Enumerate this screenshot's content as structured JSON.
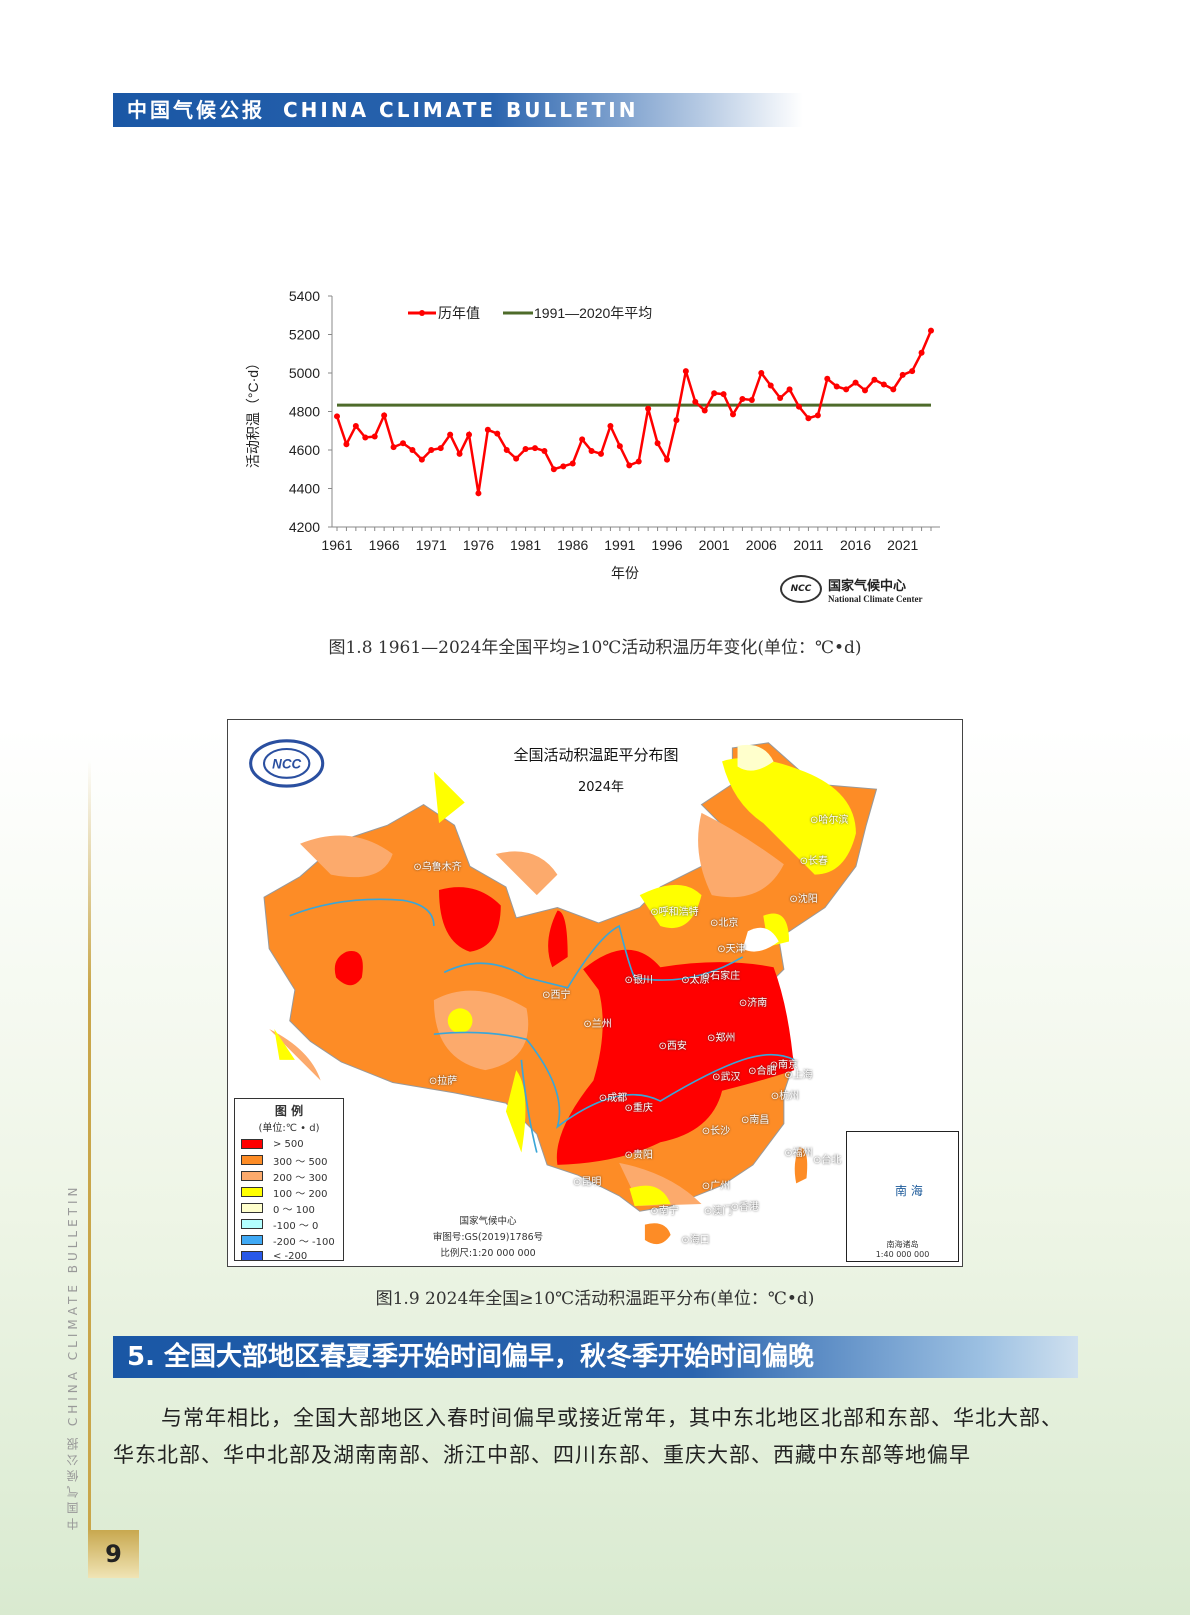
{
  "header": {
    "cn": "中国气候公报",
    "en": "CHINA CLIMATE BULLETIN"
  },
  "chart_data": {
    "type": "line",
    "title": "",
    "xlabel": "年份",
    "ylabel": "活动积温（°C·d）",
    "ylim": [
      4200,
      5400
    ],
    "yticks": [
      "4200",
      "4400",
      "4600",
      "4800",
      "5000",
      "5200",
      "5400"
    ],
    "xticks": [
      "1961",
      "1966",
      "1971",
      "1976",
      "1981",
      "1986",
      "1991",
      "1996",
      "2001",
      "2006",
      "2011",
      "2016",
      "2021"
    ],
    "legend": {
      "series": "历年值",
      "baseline": "1991—2020年平均",
      "placement": "top-left"
    },
    "x_start": 1961,
    "series": [
      {
        "name": "历年值",
        "color": "#ff0000",
        "values": [
          4775,
          4630,
          4725,
          4665,
          4670,
          4780,
          4615,
          4635,
          4600,
          4550,
          4600,
          4610,
          4680,
          4580,
          4680,
          4375,
          4705,
          4685,
          4600,
          4555,
          4605,
          4610,
          4595,
          4500,
          4515,
          4530,
          4655,
          4595,
          4580,
          4725,
          4620,
          4520,
          4540,
          4815,
          4635,
          4550,
          4755,
          5010,
          4850,
          4805,
          4895,
          4890,
          4785,
          4865,
          4860,
          5000,
          4935,
          4870,
          4915,
          4825,
          4765,
          4780,
          4970,
          4930,
          4915,
          4950,
          4910,
          4965,
          4940,
          4915,
          4990,
          5010,
          5105,
          5220
        ]
      }
    ],
    "baseline": {
      "name": "1991—2020年平均",
      "value": 4833,
      "color": "#4e6b2a"
    }
  },
  "ncc": {
    "logo": "NCC",
    "cn": "国家气候中心",
    "en": "National Climate Center"
  },
  "caption1": "图1.8  1961—2024年全国平均≥10℃活动积温历年变化(单位：℃•d)",
  "map": {
    "title": "全国活动积温距平分布图",
    "year": "2024年",
    "logo": "中国 NCC",
    "legend_title": "图 例",
    "legend_unit": "(单位:℃ • d)",
    "legend": [
      {
        "label": ">  500",
        "color": "#ff0000"
      },
      {
        "label": "300 ～ 500",
        "color": "#fd8c26"
      },
      {
        "label": "200 ～ 300",
        "color": "#fcaa6c"
      },
      {
        "label": "100 ～ 200",
        "color": "#ffff00"
      },
      {
        "label": "0 ～ 100",
        "color": "#ffffcc"
      },
      {
        "label": "-100 ～ 0",
        "color": "#b3ffff"
      },
      {
        "label": "-200 ～ -100",
        "color": "#3fa9f5"
      },
      {
        "label": "<  -200",
        "color": "#2858e8"
      }
    ],
    "footer": [
      "国家气候中心",
      "审图号:GS(2019)1786号",
      "比例尺:1:20 000 000"
    ],
    "inset_label": "南海诸岛\n1:40 000 000",
    "inset_sea": "南 海",
    "cities": [
      "乌鲁木齐",
      "哈尔滨",
      "长春",
      "沈阳",
      "呼和浩特",
      "北京",
      "天津",
      "银川",
      "太原",
      "石家庄",
      "西宁",
      "兰州",
      "济南",
      "郑州",
      "西安",
      "拉萨",
      "南京",
      "合肥",
      "上海",
      "武汉",
      "杭州",
      "成都",
      "重庆",
      "长沙",
      "南昌",
      "贵阳",
      "福州",
      "台北",
      "昆明",
      "广州",
      "南宁",
      "澳门",
      "香港",
      "海口"
    ]
  },
  "caption2": "图1.9  2024年全国≥10℃活动积温距平分布(单位：℃•d)",
  "section": {
    "title": "5. 全国大部地区春夏季开始时间偏早，秋冬季开始时间偏晚"
  },
  "paragraph": "与常年相比，全国大部地区入春时间偏早或接近常年，其中东北地区北部和东部、华北大部、华东北部、华中北部及湖南南部、浙江中部、四川东部、重庆大部、西藏中东部等地偏早",
  "side_text": "中国气候公报  CHINA CLIMATE BULLETIN",
  "page_number": "9"
}
